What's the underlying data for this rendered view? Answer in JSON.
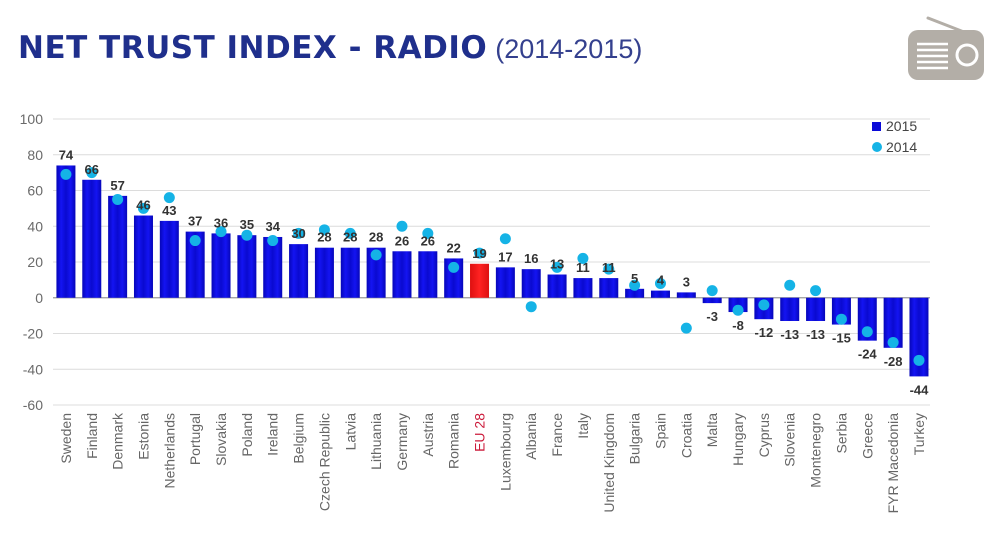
{
  "title": {
    "main": "NET TRUST INDEX - RADIO",
    "sub": "(2014-2015)"
  },
  "legend": {
    "series_2015": "2015",
    "series_2014": "2014"
  },
  "colors": {
    "bar": "#0a0ad8",
    "bar_highlight": "#ee1111",
    "dot": "#15b3e6",
    "title": "#1f2f8c",
    "highlight_label": "#cc1b3b",
    "icon": "#b3aea7"
  },
  "icon": "radio-icon",
  "chart_data": {
    "type": "bar",
    "title": "NET TRUST INDEX - RADIO (2014-2015)",
    "xlabel": "",
    "ylabel": "",
    "ylim": [
      -60,
      100
    ],
    "yticks": [
      -60,
      -40,
      -20,
      0,
      20,
      40,
      60,
      80,
      100
    ],
    "grid": true,
    "legend_position": "top-right",
    "highlight": "EU 28",
    "categories": [
      "Sweden",
      "Finland",
      "Denmark",
      "Estonia",
      "Netherlands",
      "Portugal",
      "Slovakia",
      "Poland",
      "Ireland",
      "Belgium",
      "Czech Republic",
      "Latvia",
      "Lithuania",
      "Germany",
      "Austria",
      "Romania",
      "EU 28",
      "Luxembourg",
      "Albania",
      "France",
      "Italy",
      "United Kingdom",
      "Bulgaria",
      "Spain",
      "Croatia",
      "Malta",
      "Hungary",
      "Cyprus",
      "Slovenia",
      "Montenegro",
      "Serbia",
      "Greece",
      "FYR Macedonia",
      "Turkey"
    ],
    "series": [
      {
        "name": "2015",
        "kind": "bar",
        "values": [
          74,
          66,
          57,
          46,
          43,
          37,
          36,
          35,
          34,
          30,
          28,
          28,
          28,
          26,
          26,
          22,
          19,
          17,
          16,
          13,
          11,
          11,
          5,
          4,
          3,
          -3,
          -8,
          -12,
          -13,
          -13,
          -15,
          -24,
          -28,
          -44
        ]
      },
      {
        "name": "2014",
        "kind": "dot",
        "values": [
          69,
          70,
          55,
          50,
          56,
          32,
          37,
          35,
          32,
          36,
          38,
          36,
          24,
          40,
          36,
          17,
          25,
          33,
          -5,
          17,
          22,
          16,
          7,
          8,
          -17,
          4,
          -7,
          -4,
          7,
          4,
          -12,
          -19,
          -25,
          -35
        ]
      }
    ]
  }
}
